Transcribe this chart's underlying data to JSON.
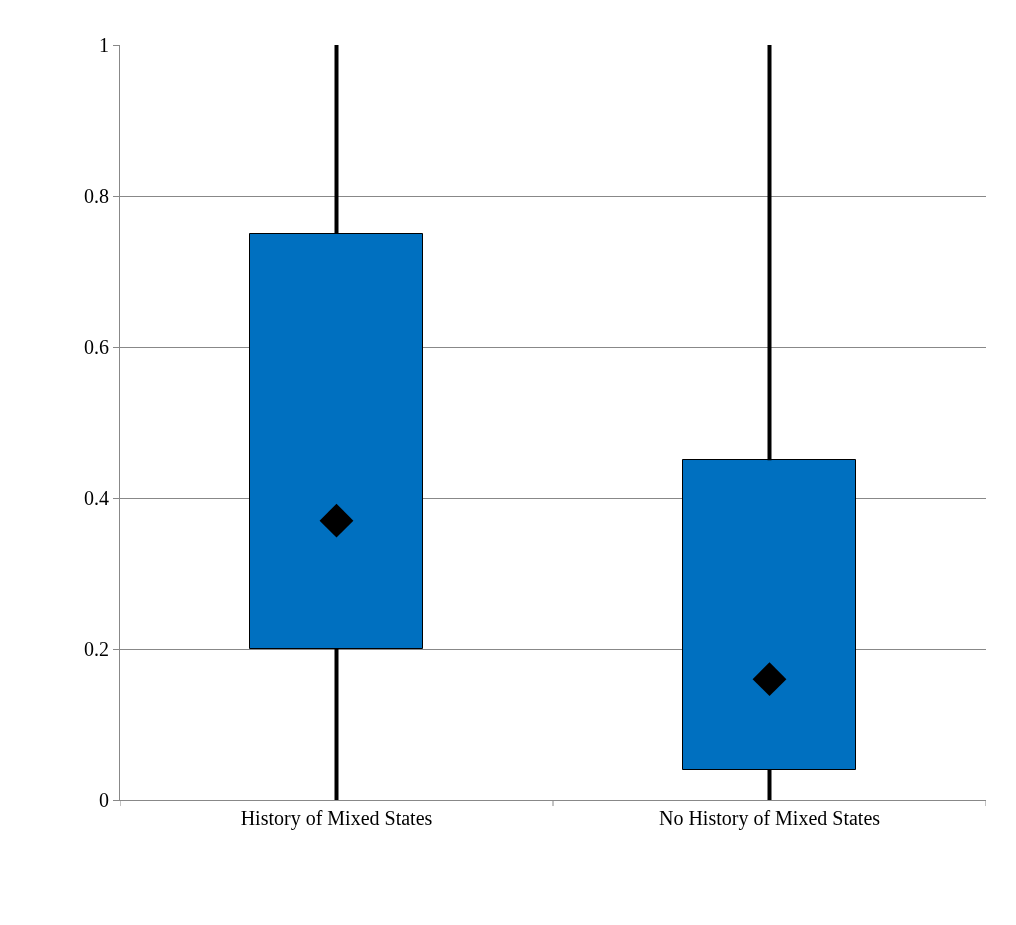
{
  "chart_data": {
    "type": "box",
    "categories": [
      "History of Mixed States",
      "No History of Mixed States"
    ],
    "boxes": [
      {
        "low": 0,
        "q1": 0.2,
        "median": 0.37,
        "q3": 0.75,
        "high": 1
      },
      {
        "low": 0,
        "q1": 0.04,
        "median": 0.16,
        "q3": 0.45,
        "high": 1
      }
    ],
    "color": "#0070c0",
    "ylim": [
      0,
      1
    ],
    "yticks": [
      0,
      {
        "value": 0.2,
        "label": "0.2"
      },
      {
        "value": 0.4,
        "label": "0.4"
      },
      {
        "value": 0.6,
        "label": "0.6"
      },
      {
        "value": 0.8,
        "label": "0.8"
      },
      1
    ],
    "grid": "y",
    "marker": "diamond"
  }
}
